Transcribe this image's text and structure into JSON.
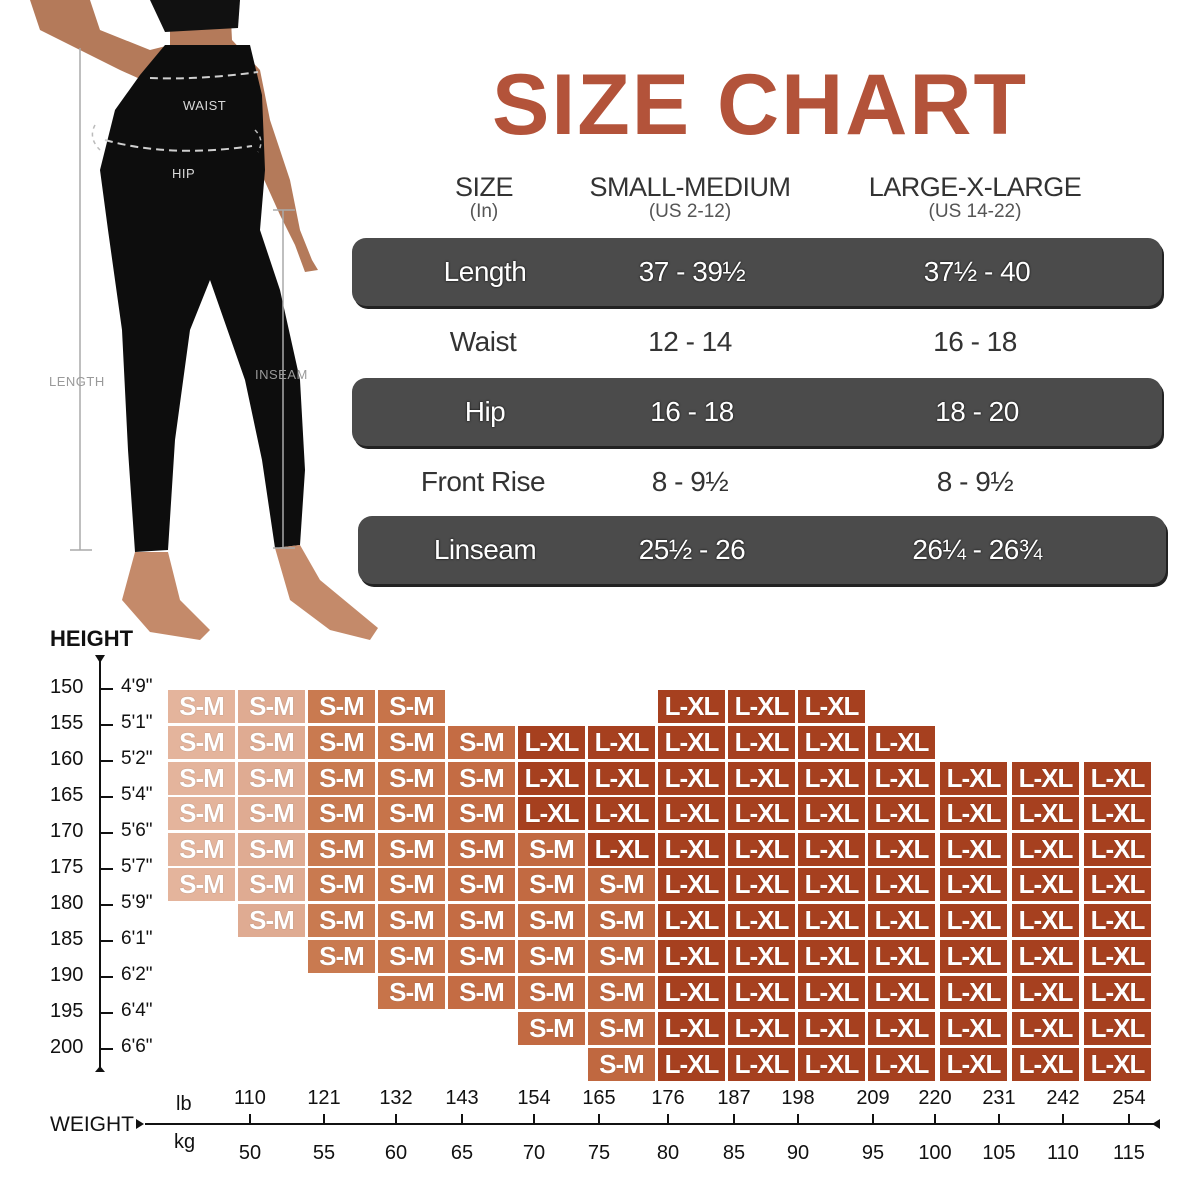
{
  "title": "SIZE CHART",
  "figure": {
    "labels": {
      "waist": "WAIST",
      "hip": "HIP",
      "length": "LENGTH",
      "inseam": "INSEAM"
    }
  },
  "measurement_table": {
    "header": {
      "size": {
        "main": "SIZE",
        "sub": "(In)"
      },
      "small_medium": {
        "main": "SMALL-MEDIUM",
        "sub": "(US 2-12)"
      },
      "large_xlarge": {
        "main": "LARGE-X-LARGE",
        "sub": "(US 14-22)"
      }
    },
    "rows": [
      {
        "label": "Length",
        "sm": "37 - 39½",
        "lxl": "37½ - 40",
        "style": "dark"
      },
      {
        "label": "Waist",
        "sm": "12 - 14",
        "lxl": "16 - 18",
        "style": "light"
      },
      {
        "label": "Hip",
        "sm": "16 - 18",
        "lxl": "18 - 20",
        "style": "dark"
      },
      {
        "label": "Front Rise",
        "sm": "8 - 9½",
        "lxl": "8 - 9½",
        "style": "light"
      },
      {
        "label": "Linseam",
        "sm": "25½ - 26",
        "lxl": "26¼ - 26¾",
        "style": "dark"
      }
    ]
  },
  "grid": {
    "height_title": "HEIGHT",
    "weight_title": "WEIGHT",
    "unit_lb": "lb",
    "unit_kg": "kg",
    "height_cm": [
      "150",
      "155",
      "160",
      "165",
      "170",
      "175",
      "180",
      "185",
      "190",
      "195",
      "200"
    ],
    "height_ft": [
      "4'9\"",
      "5'1\"",
      "5'2\"",
      "5'4\"",
      "5'6\"",
      "5'7\"",
      "5'9\"",
      "6'1\"",
      "6'2\"",
      "6'4\"",
      "6'6\""
    ],
    "weight_lb": [
      "110",
      "121",
      "132",
      "143",
      "154",
      "165",
      "176",
      "187",
      "198",
      "209",
      "220",
      "231",
      "242",
      "254"
    ],
    "weight_kg": [
      "50",
      "55",
      "60",
      "65",
      "70",
      "75",
      "80",
      "85",
      "90",
      "95",
      "100",
      "105",
      "110",
      "115"
    ],
    "colors": {
      "sm_col": [
        "#e4b49c",
        "#dfab92",
        "#c97a50",
        "#c7744a",
        "#c46c44",
        "#c26a42",
        "#c06840"
      ],
      "lxl": "#a6401f",
      "title": "#b3533a",
      "table_dark": "#4b4b4b"
    }
  },
  "chart_data": {
    "type": "table",
    "title": "SIZE CHART",
    "measurement_table": {
      "columns": [
        "SIZE (In)",
        "SMALL-MEDIUM (US 2-12)",
        "LARGE-X-LARGE (US 14-22)"
      ],
      "rows": [
        [
          "Length",
          "37 - 39½",
          "37½ - 40"
        ],
        [
          "Waist",
          "12 - 14",
          "16 - 18"
        ],
        [
          "Hip",
          "16 - 18",
          "18 - 20"
        ],
        [
          "Front Rise",
          "8 - 9½",
          "8 - 9½"
        ],
        [
          "Linseam",
          "25½ - 26",
          "26¼ - 26¾"
        ]
      ]
    },
    "height_weight_grid": {
      "ylabel": "HEIGHT",
      "xlabel": "WEIGHT",
      "y_cm": [
        150,
        155,
        160,
        165,
        170,
        175,
        180,
        185,
        190,
        195,
        200
      ],
      "y_ft": [
        "4'9\"",
        "5'1\"",
        "5'2\"",
        "5'4\"",
        "5'6\"",
        "5'7\"",
        "5'9\"",
        "6'1\"",
        "6'2\"",
        "6'4\"",
        "6'6\""
      ],
      "x_lb": [
        110,
        121,
        132,
        143,
        154,
        165,
        176,
        187,
        198,
        209,
        220,
        231,
        242,
        254
      ],
      "x_kg": [
        50,
        55,
        60,
        65,
        70,
        75,
        80,
        85,
        90,
        95,
        100,
        105,
        110,
        115
      ],
      "cells": [
        [
          "S-M",
          "S-M",
          "S-M",
          "S-M",
          "",
          "",
          "",
          "L-XL",
          "L-XL",
          "L-XL",
          "",
          "",
          "",
          ""
        ],
        [
          "S-M",
          "S-M",
          "S-M",
          "S-M",
          "S-M",
          "L-XL",
          "L-XL",
          "L-XL",
          "L-XL",
          "L-XL",
          "L-XL",
          "",
          "",
          ""
        ],
        [
          "S-M",
          "S-M",
          "S-M",
          "S-M",
          "S-M",
          "L-XL",
          "L-XL",
          "L-XL",
          "L-XL",
          "L-XL",
          "L-XL",
          "L-XL",
          "L-XL",
          "L-XL"
        ],
        [
          "S-M",
          "S-M",
          "S-M",
          "S-M",
          "S-M",
          "L-XL",
          "L-XL",
          "L-XL",
          "L-XL",
          "L-XL",
          "L-XL",
          "L-XL",
          "L-XL",
          "L-XL"
        ],
        [
          "S-M",
          "S-M",
          "S-M",
          "S-M",
          "S-M",
          "S-M",
          "L-XL",
          "L-XL",
          "L-XL",
          "L-XL",
          "L-XL",
          "L-XL",
          "L-XL",
          "L-XL"
        ],
        [
          "S-M",
          "S-M",
          "S-M",
          "S-M",
          "S-M",
          "S-M",
          "S-M",
          "L-XL",
          "L-XL",
          "L-XL",
          "L-XL",
          "L-XL",
          "L-XL",
          "L-XL"
        ],
        [
          "",
          "S-M",
          "S-M",
          "S-M",
          "S-M",
          "S-M",
          "S-M",
          "L-XL",
          "L-XL",
          "L-XL",
          "L-XL",
          "L-XL",
          "L-XL",
          "L-XL"
        ],
        [
          "",
          "",
          "S-M",
          "S-M",
          "S-M",
          "S-M",
          "S-M",
          "L-XL",
          "L-XL",
          "L-XL",
          "L-XL",
          "L-XL",
          "L-XL",
          "L-XL"
        ],
        [
          "",
          "",
          "",
          "S-M",
          "S-M",
          "S-M",
          "S-M",
          "L-XL",
          "L-XL",
          "L-XL",
          "L-XL",
          "L-XL",
          "L-XL",
          "L-XL"
        ],
        [
          "",
          "",
          "",
          "",
          "",
          "S-M",
          "S-M",
          "L-XL",
          "L-XL",
          "L-XL",
          "L-XL",
          "L-XL",
          "L-XL",
          "L-XL"
        ],
        [
          "",
          "",
          "",
          "",
          "",
          "",
          "S-M",
          "L-XL",
          "L-XL",
          "L-XL",
          "L-XL",
          "L-XL",
          "L-XL",
          "L-XL"
        ]
      ]
    }
  }
}
